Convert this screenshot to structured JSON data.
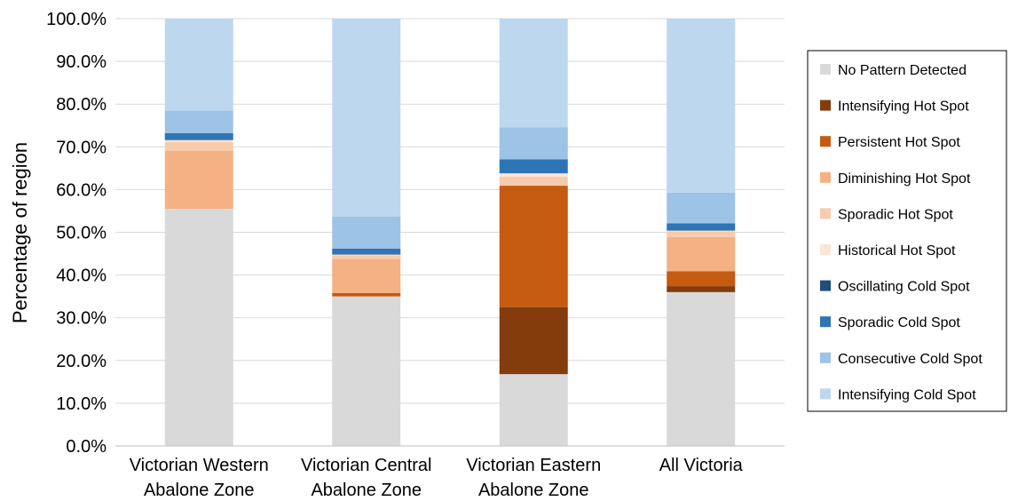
{
  "chart_data": {
    "type": "bar",
    "stacked": true,
    "ylabel": "Percentage of region",
    "ylim": [
      0,
      100
    ],
    "yticks": [
      "0.0%",
      "10.0%",
      "20.0%",
      "30.0%",
      "40.0%",
      "50.0%",
      "60.0%",
      "70.0%",
      "80.0%",
      "90.0%",
      "100.0%"
    ],
    "grid": true,
    "legend_position": "right",
    "categories": [
      [
        "Victorian Western",
        "Abalone Zone"
      ],
      [
        "Victorian Central",
        "Abalone Zone"
      ],
      [
        "Victorian Eastern",
        "Abalone Zone"
      ],
      [
        "All Victoria"
      ]
    ],
    "series": [
      {
        "name": "No Pattern Detected",
        "color": "#d9d9d9",
        "values": [
          55.5,
          35.0,
          16.8,
          36.0
        ]
      },
      {
        "name": "Intensifying Hot Spot",
        "color": "#843c0c",
        "values": [
          0,
          0,
          15.7,
          1.4
        ]
      },
      {
        "name": "Persistent Hot Spot",
        "color": "#c55a11",
        "values": [
          0,
          0.8,
          28.4,
          3.5
        ]
      },
      {
        "name": "Diminishing Hot Spot",
        "color": "#f4b183",
        "values": [
          13.6,
          8.0,
          0,
          8.0
        ]
      },
      {
        "name": "Sporadic Hot Spot",
        "color": "#f8cbad",
        "values": [
          2.0,
          0.8,
          2.1,
          1.3
        ]
      },
      {
        "name": "Historical Hot Spot",
        "color": "#fbe5d6",
        "values": [
          0.5,
          0.2,
          0.8,
          0.2
        ]
      },
      {
        "name": "Oscillating Cold Spot",
        "color": "#1f4e79",
        "values": [
          0.2,
          0.1,
          0.1,
          0.1
        ]
      },
      {
        "name": "Sporadic Cold Spot",
        "color": "#2e75b6",
        "values": [
          1.4,
          1.3,
          3.2,
          1.6
        ]
      },
      {
        "name": "Consecutive Cold Spot",
        "color": "#9dc3e6",
        "values": [
          5.3,
          7.5,
          7.5,
          7.2
        ]
      },
      {
        "name": "Intensifying Cold Spot",
        "color": "#bdd7ee",
        "values": [
          21.5,
          46.3,
          25.4,
          40.7
        ]
      }
    ]
  }
}
